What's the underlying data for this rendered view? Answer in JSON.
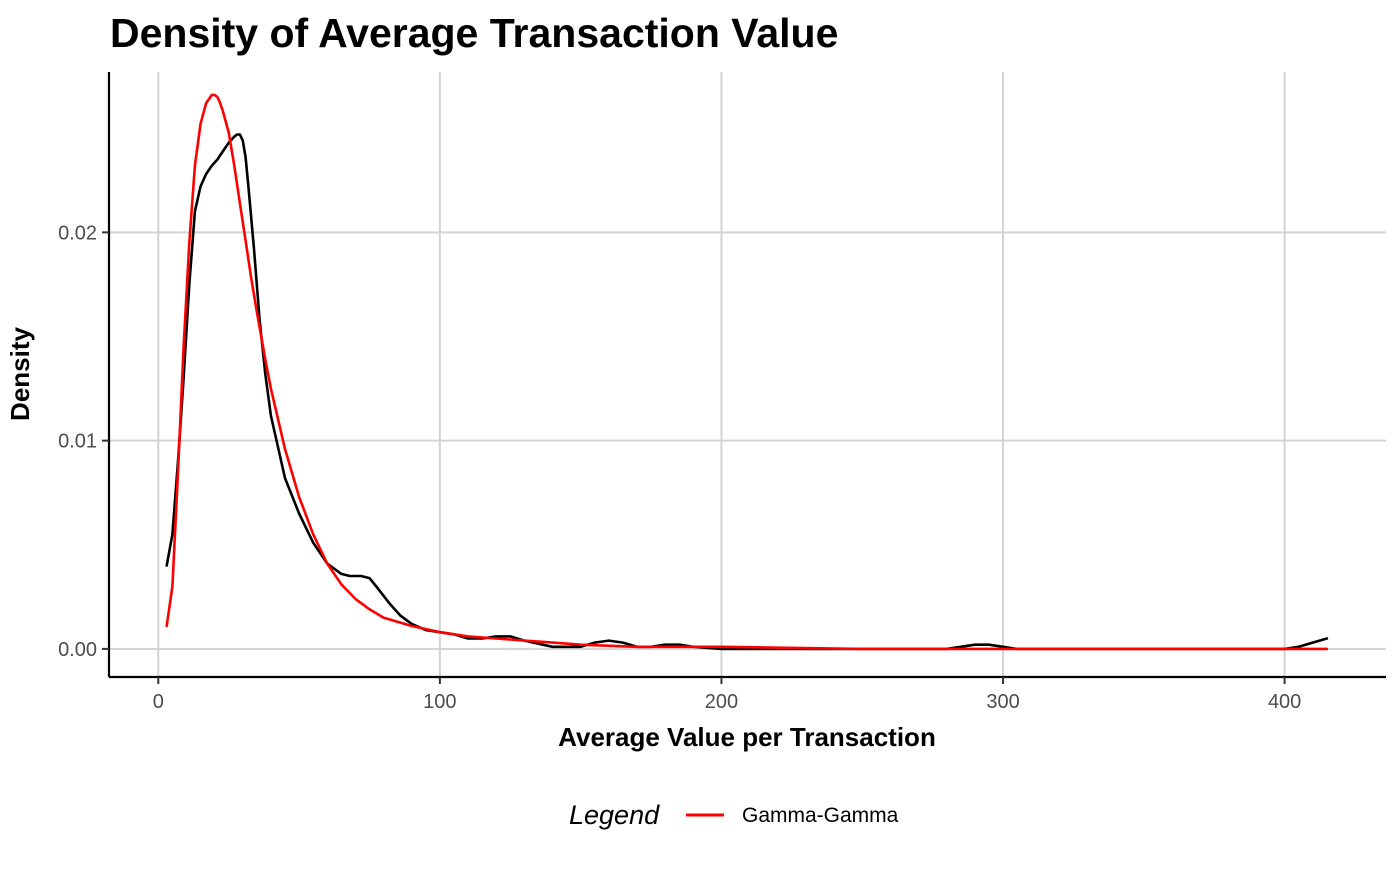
{
  "chart_data": {
    "type": "line",
    "title": "Density of Average Transaction Value",
    "xlabel": "Average Value per Transaction",
    "ylabel": "Density",
    "xlim": [
      -17.5,
      436
    ],
    "ylim": [
      -0.00135,
      0.0277
    ],
    "x_ticks": [
      0,
      100,
      200,
      300,
      400
    ],
    "x_tick_labels": [
      "0",
      "100",
      "200",
      "300",
      "400"
    ],
    "y_ticks": [
      0.0,
      0.01,
      0.02
    ],
    "y_tick_labels": [
      "0.00",
      "0.01",
      "0.02"
    ],
    "grid": true,
    "legend": {
      "title": "Legend",
      "position": "bottom",
      "entries": [
        {
          "label": "Gamma-Gamma",
          "color": "#ff0000"
        }
      ]
    },
    "series": [
      {
        "color": "#000000",
        "x": [
          3,
          5,
          7,
          9,
          11,
          13,
          15,
          17,
          19,
          21,
          23,
          25,
          27,
          28,
          29,
          30,
          31,
          32,
          34,
          36,
          38,
          40,
          45,
          50,
          55,
          60,
          65,
          68,
          70,
          72,
          75,
          78,
          82,
          86,
          90,
          95,
          100,
          105,
          110,
          115,
          120,
          125,
          130,
          140,
          145,
          150,
          155,
          160,
          165,
          170,
          175,
          180,
          185,
          190,
          200,
          220,
          250,
          280,
          285,
          290,
          295,
          300,
          305,
          320,
          350,
          380,
          400,
          405,
          410,
          415
        ],
        "y": [
          0.004,
          0.0055,
          0.009,
          0.013,
          0.0175,
          0.021,
          0.0222,
          0.0228,
          0.0232,
          0.0235,
          0.0239,
          0.0243,
          0.0246,
          0.0247,
          0.0247,
          0.0244,
          0.0236,
          0.0222,
          0.0192,
          0.0158,
          0.0132,
          0.0112,
          0.0082,
          0.0065,
          0.0051,
          0.0041,
          0.0036,
          0.0035,
          0.0035,
          0.0035,
          0.0034,
          0.0029,
          0.0022,
          0.0016,
          0.0012,
          0.0009,
          0.0008,
          0.0007,
          0.0005,
          0.0005,
          0.0006,
          0.0006,
          0.0004,
          0.0001,
          0.0001,
          0.0001,
          0.0003,
          0.0004,
          0.0003,
          0.0001,
          0.0001,
          0.0002,
          0.0002,
          0.0001,
          0.0,
          0.0,
          0.0,
          0.0,
          0.0001,
          0.0002,
          0.0002,
          0.0001,
          0.0,
          0.0,
          0.0,
          0.0,
          0.0,
          0.0001,
          0.0003,
          0.0005
        ]
      },
      {
        "name": "Gamma-Gamma",
        "color": "#ff0000",
        "x": [
          3,
          5,
          7,
          9,
          11,
          13,
          15,
          17,
          19,
          20,
          21,
          22,
          23,
          25,
          27,
          29,
          31,
          33,
          35,
          38,
          40,
          45,
          50,
          55,
          60,
          65,
          70,
          75,
          80,
          90,
          100,
          110,
          120,
          130,
          140,
          150,
          170,
          200,
          250,
          300,
          350,
          400,
          415
        ],
        "y": [
          0.0011,
          0.003,
          0.0085,
          0.0145,
          0.0195,
          0.0232,
          0.0252,
          0.0262,
          0.0266,
          0.0266,
          0.0265,
          0.0262,
          0.0258,
          0.0248,
          0.0232,
          0.0214,
          0.0196,
          0.0178,
          0.0162,
          0.0139,
          0.0125,
          0.0096,
          0.0073,
          0.0055,
          0.0041,
          0.0031,
          0.0024,
          0.0019,
          0.0015,
          0.0011,
          0.0008,
          0.0006,
          0.0005,
          0.0004,
          0.0003,
          0.0002,
          0.0001,
          0.0001,
          0.0,
          0.0,
          0.0,
          0.0,
          0.0
        ]
      }
    ]
  }
}
